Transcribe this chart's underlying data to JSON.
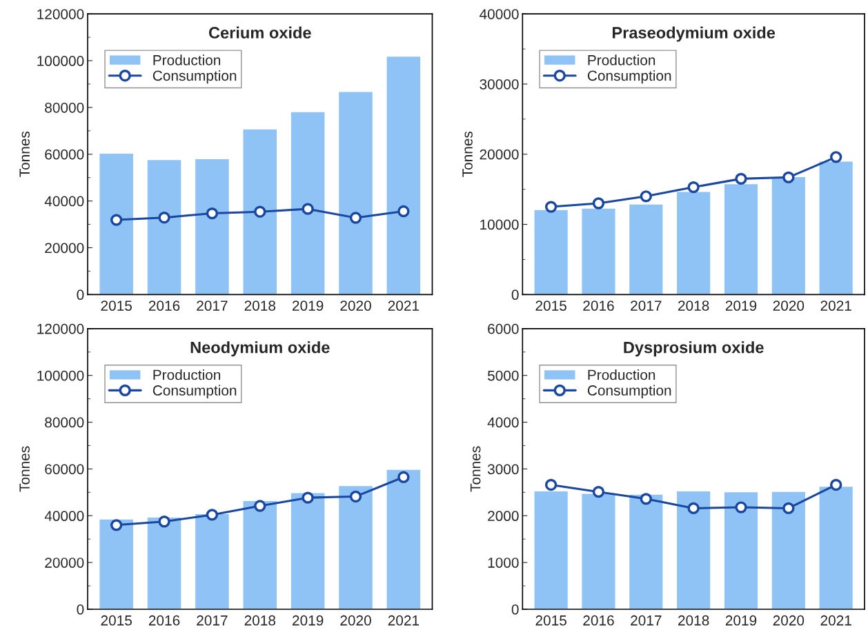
{
  "chart_data": [
    {
      "type": "bar",
      "title": "Cerium oxide",
      "ylabel": "Tonnes",
      "categories": [
        "2015",
        "2016",
        "2017",
        "2018",
        "2019",
        "2020",
        "2021"
      ],
      "ylim": [
        0,
        120000
      ],
      "yticks": [
        0,
        20000,
        40000,
        60000,
        80000,
        100000,
        120000
      ],
      "legend": "top left",
      "grid": false,
      "series": [
        {
          "name": "Production",
          "type": "bar",
          "color": "#90c3f5",
          "values": [
            60400,
            57700,
            58100,
            70800,
            78200,
            86800,
            101900
          ]
        },
        {
          "name": "Consumption",
          "type": "line",
          "color": "#1a47a0",
          "marker": "circle",
          "line_style": "solid",
          "values": [
            31900,
            32900,
            34700,
            35400,
            36600,
            32800,
            35600
          ]
        }
      ]
    },
    {
      "type": "bar",
      "title": "Praseodymium oxide",
      "ylabel": "Tonnes",
      "categories": [
        "2015",
        "2016",
        "2017",
        "2018",
        "2019",
        "2020",
        "2021"
      ],
      "ylim": [
        0,
        40000
      ],
      "yticks": [
        0,
        10000,
        20000,
        30000,
        40000
      ],
      "legend": "top left",
      "grid": false,
      "series": [
        {
          "name": "Production",
          "type": "bar",
          "color": "#90c3f5",
          "values": [
            12100,
            12300,
            12900,
            14700,
            15800,
            16800,
            19000
          ]
        },
        {
          "name": "Consumption",
          "type": "line",
          "color": "#1a47a0",
          "marker": "circle",
          "line_style": "solid",
          "values": [
            12500,
            13000,
            14000,
            15300,
            16500,
            16700,
            19600
          ]
        }
      ]
    },
    {
      "type": "bar",
      "title": "Neodymium oxide",
      "ylabel": "Tonnes",
      "categories": [
        "2015",
        "2016",
        "2017",
        "2018",
        "2019",
        "2020",
        "2021"
      ],
      "ylim": [
        0,
        120000
      ],
      "yticks": [
        0,
        20000,
        40000,
        60000,
        80000,
        100000,
        120000
      ],
      "legend": "top left",
      "grid": false,
      "series": [
        {
          "name": "Production",
          "type": "bar",
          "color": "#90c3f5",
          "values": [
            38600,
            39400,
            40900,
            46500,
            49900,
            52900,
            59800
          ]
        },
        {
          "name": "Consumption",
          "type": "line",
          "color": "#1a47a0",
          "marker": "circle",
          "line_style": "solid",
          "values": [
            36000,
            37500,
            40400,
            44200,
            47700,
            48200,
            56500
          ]
        }
      ]
    },
    {
      "type": "bar",
      "title": "Dysprosium oxide",
      "ylabel": "Tonnes",
      "categories": [
        "2015",
        "2016",
        "2017",
        "2018",
        "2019",
        "2020",
        "2021"
      ],
      "ylim": [
        0,
        6000
      ],
      "yticks": [
        0,
        1000,
        2000,
        3000,
        4000,
        5000,
        6000
      ],
      "legend": "top left",
      "grid": false,
      "series": [
        {
          "name": "Production",
          "type": "bar",
          "color": "#90c3f5",
          "values": [
            2530,
            2480,
            2460,
            2530,
            2510,
            2520,
            2630
          ]
        },
        {
          "name": "Consumption",
          "type": "line",
          "color": "#1a47a0",
          "marker": "circle",
          "line_style": "solid",
          "values": [
            2660,
            2510,
            2360,
            2160,
            2180,
            2160,
            2660
          ]
        }
      ]
    }
  ]
}
